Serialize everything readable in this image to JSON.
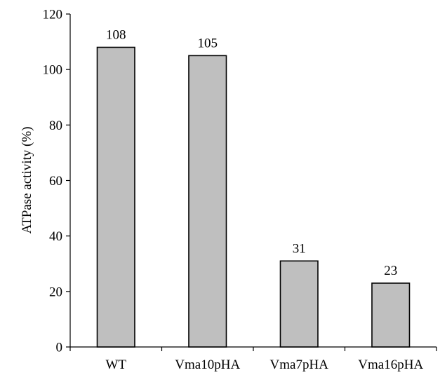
{
  "chart_data": {
    "type": "bar",
    "title": "",
    "xlabel": "",
    "ylabel": "ATPase activity (%)",
    "categories": [
      "WT",
      "Vma10pHA",
      "Vma7pHA",
      "Vma16pHA"
    ],
    "values": [
      108,
      105,
      31,
      23
    ],
    "data_labels": [
      "108",
      "105",
      "31",
      "23"
    ],
    "ylim": [
      0,
      120
    ],
    "yticks": [
      0,
      20,
      40,
      60,
      80,
      100,
      120
    ],
    "grid": false,
    "legend": "none",
    "bar_color": "#bfbfbf",
    "bar_edge_color": "#000000"
  }
}
